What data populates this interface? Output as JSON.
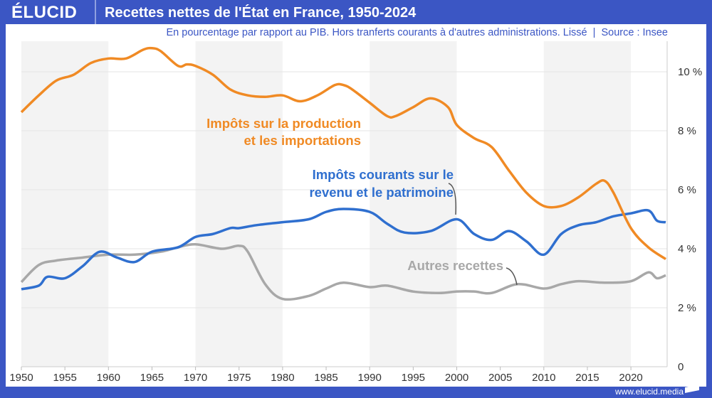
{
  "header": {
    "logo": "ÉLUCID",
    "title": "Recettes nettes de l'État en France, 1950-2024",
    "subtitle": "En pourcentage par rapport au PIB. Hors tranferts courants à d'autres administrations. Lissé  |  Source : Insee"
  },
  "footer": {
    "website": "www.elucid.media"
  },
  "colors": {
    "brand": "#3b56c4",
    "production": "#f08a24",
    "revenu": "#2f6fcf",
    "autres": "#a8a8a8",
    "band": "#f3f3f3"
  },
  "chart_data": {
    "type": "line",
    "xlim": [
      1950,
      2024
    ],
    "ylim": [
      0,
      11
    ],
    "x_ticks": [
      "1950",
      "1955",
      "1960",
      "1965",
      "1970",
      "1975",
      "1980",
      "1985",
      "1990",
      "1995",
      "2000",
      "2005",
      "2010",
      "2015",
      "2020"
    ],
    "y_ticks": [
      {
        "v": 0,
        "label": "0"
      },
      {
        "v": 2,
        "label": "2 %"
      },
      {
        "v": 4,
        "label": "4 %"
      },
      {
        "v": 6,
        "label": "6 %"
      },
      {
        "v": 8,
        "label": "8 %"
      },
      {
        "v": 10,
        "label": "10 %"
      }
    ],
    "grid": true,
    "shaded_decades": [
      [
        1950,
        1960
      ],
      [
        1970,
        1980
      ],
      [
        1990,
        2000
      ],
      [
        2010,
        2020
      ]
    ],
    "series": [
      {
        "name": "Impôts sur la production et les importations",
        "label_lines": [
          "Impôts sur la production",
          "et les importations"
        ],
        "color": "#f08a24",
        "x": [
          1950,
          1952,
          1954,
          1956,
          1958,
          1960,
          1962,
          1964,
          1965,
          1966,
          1968,
          1969,
          1970,
          1972,
          1974,
          1976,
          1978,
          1980,
          1982,
          1984,
          1986,
          1987,
          1988,
          1990,
          1992,
          1993,
          1995,
          1997,
          1999,
          2000,
          2002,
          2004,
          2006,
          2008,
          2010,
          2012,
          2014,
          2016,
          2017,
          2018,
          2020,
          2022,
          2024
        ],
        "y": [
          8.63,
          9.2,
          9.7,
          9.9,
          10.3,
          10.45,
          10.45,
          10.75,
          10.8,
          10.7,
          10.2,
          10.25,
          10.2,
          9.9,
          9.4,
          9.2,
          9.15,
          9.2,
          9.0,
          9.2,
          9.55,
          9.55,
          9.4,
          8.95,
          8.5,
          8.5,
          8.8,
          9.1,
          8.8,
          8.2,
          7.75,
          7.45,
          6.65,
          5.9,
          5.45,
          5.45,
          5.75,
          6.2,
          6.3,
          5.9,
          4.7,
          4.05,
          3.65
        ]
      },
      {
        "name": "Impôts courants sur le revenu et le patrimoine",
        "label_lines": [
          "Impôts courants sur le",
          "revenu et le patrimoine"
        ],
        "color": "#2f6fcf",
        "x": [
          1950,
          1952,
          1953,
          1955,
          1957,
          1959,
          1961,
          1963,
          1965,
          1968,
          1970,
          1972,
          1974,
          1975,
          1977,
          1980,
          1983,
          1985,
          1987,
          1990,
          1992,
          1994,
          1997,
          2000,
          2002,
          2004,
          2006,
          2008,
          2010,
          2012,
          2014,
          2016,
          2018,
          2020,
          2022,
          2023,
          2024
        ],
        "y": [
          2.63,
          2.75,
          3.05,
          3.0,
          3.4,
          3.9,
          3.7,
          3.55,
          3.9,
          4.05,
          4.4,
          4.5,
          4.7,
          4.7,
          4.8,
          4.9,
          5.0,
          5.25,
          5.35,
          5.25,
          4.85,
          4.55,
          4.6,
          5.0,
          4.5,
          4.3,
          4.6,
          4.25,
          3.8,
          4.5,
          4.8,
          4.9,
          5.1,
          5.2,
          5.3,
          4.95,
          4.9
        ]
      },
      {
        "name": "Autres recettes",
        "label_lines": [
          "Autres recettes"
        ],
        "color": "#a8a8a8",
        "x": [
          1950,
          1952,
          1954,
          1957,
          1960,
          1963,
          1966,
          1968,
          1970,
          1973,
          1975,
          1976,
          1978,
          1980,
          1983,
          1985,
          1987,
          1990,
          1992,
          1995,
          1998,
          2000,
          2002,
          2004,
          2007,
          2010,
          2012,
          2014,
          2017,
          2020,
          2022,
          2023,
          2024
        ],
        "y": [
          2.87,
          3.45,
          3.6,
          3.7,
          3.8,
          3.8,
          3.9,
          4.05,
          4.15,
          4.0,
          4.1,
          3.9,
          2.8,
          2.3,
          2.4,
          2.65,
          2.85,
          2.7,
          2.75,
          2.55,
          2.5,
          2.55,
          2.55,
          2.5,
          2.8,
          2.65,
          2.8,
          2.9,
          2.85,
          2.9,
          3.2,
          3.0,
          3.1
        ]
      }
    ]
  }
}
